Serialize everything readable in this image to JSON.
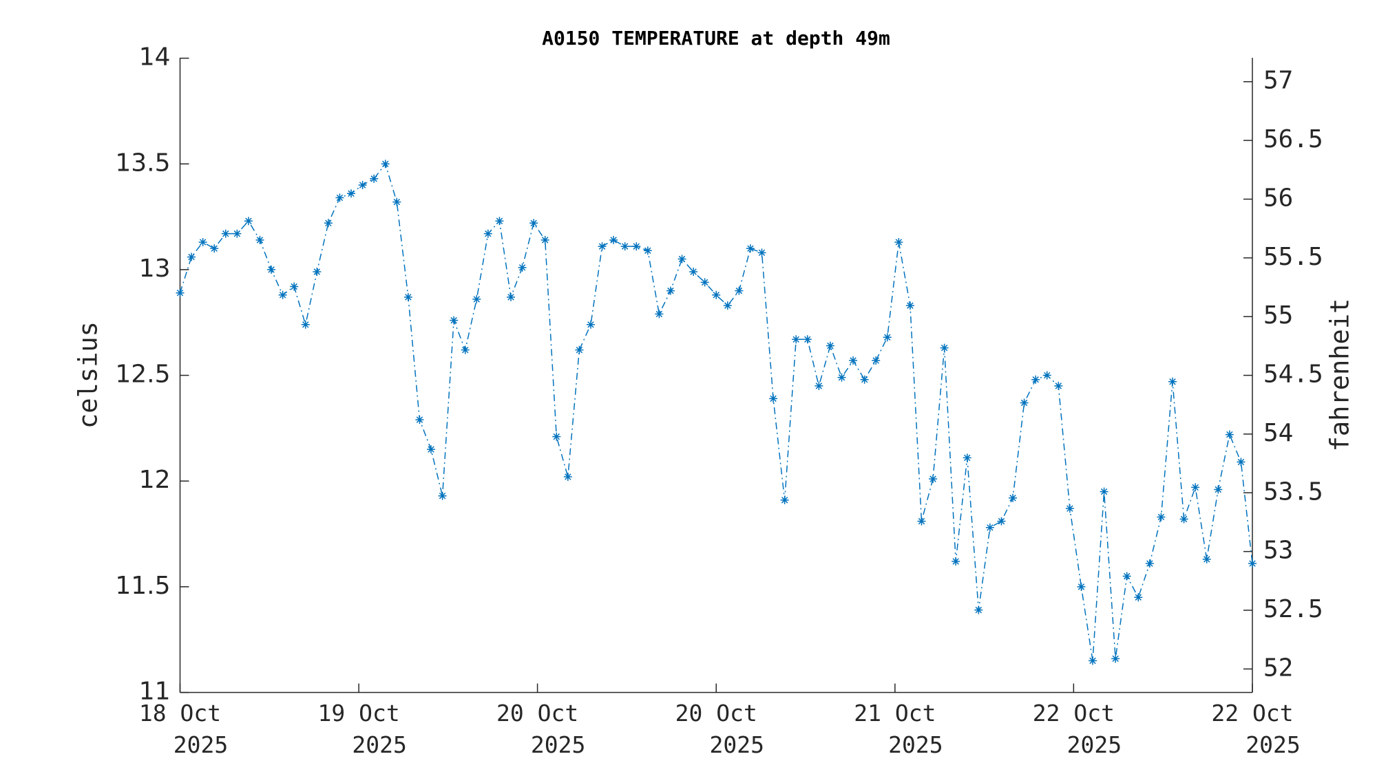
{
  "chart_data": {
    "type": "line",
    "title": "A0150 TEMPERATURE at depth 49m",
    "ylabel": "celsius",
    "y2label": "fahrenheit",
    "series": [
      {
        "name": "temperature",
        "color": "#0072bd",
        "marker": "*",
        "linestyle": "dash-dot",
        "values": [
          12.89,
          13.06,
          13.13,
          13.1,
          13.17,
          13.17,
          13.23,
          13.14,
          13.0,
          12.88,
          12.92,
          12.74,
          12.99,
          13.22,
          13.34,
          13.36,
          13.4,
          13.43,
          13.5,
          13.32,
          12.87,
          12.29,
          12.15,
          11.93,
          12.76,
          12.62,
          12.86,
          13.17,
          13.23,
          12.87,
          13.01,
          13.22,
          13.14,
          12.21,
          12.02,
          12.62,
          12.74,
          13.11,
          13.14,
          13.11,
          13.11,
          13.09,
          12.79,
          12.9,
          13.05,
          12.99,
          12.94,
          12.88,
          12.83,
          12.9,
          13.1,
          13.08,
          12.39,
          11.91,
          12.67,
          12.67,
          12.45,
          12.64,
          12.49,
          12.57,
          12.48,
          12.57,
          12.68,
          13.13,
          12.83,
          11.81,
          12.01,
          12.63,
          11.62,
          12.11,
          11.39,
          11.78,
          11.81,
          11.92,
          12.37,
          12.48,
          12.5,
          12.45,
          11.87,
          11.5,
          11.15,
          11.95,
          11.16,
          11.55,
          11.45,
          11.61,
          11.83,
          12.47,
          11.82,
          11.97,
          11.63,
          11.96,
          12.22,
          12.09,
          11.61
        ]
      }
    ],
    "xlim": [
      0,
      94
    ],
    "xticks": [
      {
        "value": 0,
        "label": [
          "18 Oct",
          "2025"
        ]
      },
      {
        "value": 15.67,
        "label": [
          "19 Oct",
          "2025"
        ]
      },
      {
        "value": 31.33,
        "label": [
          "20 Oct",
          "2025"
        ]
      },
      {
        "value": 47,
        "label": [
          "20 Oct",
          "2025"
        ]
      },
      {
        "value": 62.67,
        "label": [
          "21 Oct",
          "2025"
        ]
      },
      {
        "value": 78.33,
        "label": [
          "22 Oct",
          "2025"
        ]
      },
      {
        "value": 94,
        "label": [
          "22 Oct",
          "2025"
        ]
      }
    ],
    "ylim": [
      11,
      14
    ],
    "yticks": [
      11,
      11.5,
      12,
      12.5,
      13,
      13.5,
      14
    ],
    "y2lim": [
      51.8,
      57.2
    ],
    "y2ticks": [
      52,
      52.5,
      53,
      53.5,
      54,
      54.5,
      55,
      55.5,
      56,
      56.5,
      57
    ],
    "grid": false
  }
}
